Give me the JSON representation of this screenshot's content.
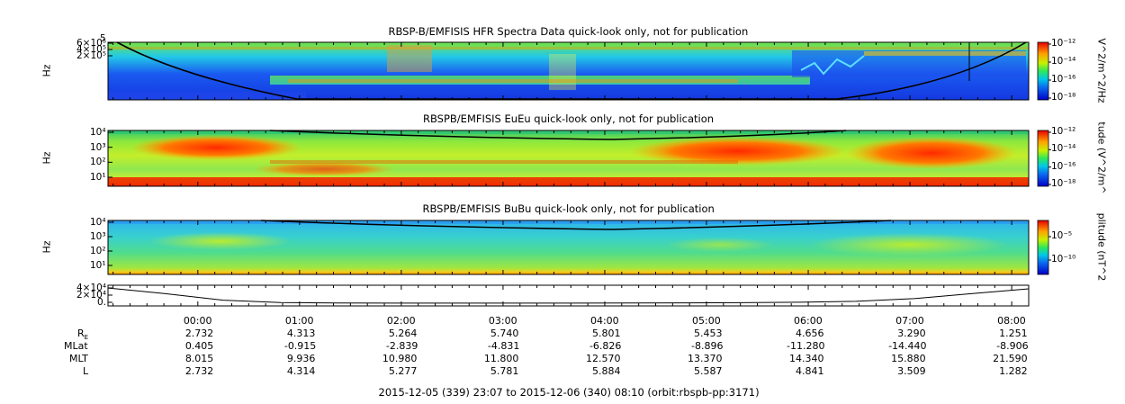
{
  "chart_data": {
    "type": "heatmap",
    "footer": "2015-12-05 (339) 23:07 to 2015-12-06 (340) 08:10 (orbit:rbspb-pp:3171)",
    "time_ticks": [
      "00:00",
      "01:00",
      "02:00",
      "03:00",
      "04:00",
      "05:00",
      "06:00",
      "07:00",
      "08:00"
    ],
    "time_start_hours": -0.883,
    "time_end_hours": 8.167,
    "panels": [
      {
        "title": "RBSP-B/EMFISIS  HFR Spectra Data quick-look only, not for publication",
        "ylabel": "Hz",
        "yticks": [
          "6×10⁵",
          "4×10⁵",
          "2×10⁵"
        ],
        "ytick_top": "5",
        "colorbar_label": "V^2/m^2/Hz",
        "colorbar_ticks": [
          "10⁻¹²",
          "10⁻¹⁴",
          "10⁻¹⁶",
          "10⁻¹⁸"
        ]
      },
      {
        "title": "RBSPB/EMFISIS  EuEu quick-look only, not for publication",
        "ylabel": "Hz",
        "yticks": [
          "10⁴",
          "10³",
          "10²",
          "10¹"
        ],
        "colorbar_label": "tude (V^2/m^",
        "colorbar_ticks": [
          "10⁻¹²",
          "10⁻¹⁴",
          "10⁻¹⁶",
          "10⁻¹⁸"
        ]
      },
      {
        "title": "RBSPB/EMFISIS  BuBu quick-look only, not for publication",
        "ylabel": "Hz",
        "yticks": [
          "10⁴",
          "10³",
          "10²",
          "10¹"
        ],
        "colorbar_label": "plitude (nT^2",
        "colorbar_ticks": [
          "10⁻⁵",
          "10⁻¹⁰"
        ]
      },
      {
        "title": "",
        "ylabel": "",
        "yticks": [
          "4×10⁴",
          "2×10⁴",
          "0."
        ],
        "line_values": [
          40000,
          25000,
          8000,
          2000,
          400,
          200,
          200,
          200,
          300,
          600,
          1000,
          1500,
          2500,
          5000,
          12000,
          25000,
          38000
        ]
      }
    ],
    "ephemeris": {
      "rows": [
        {
          "label": "R",
          "sub": "E",
          "values": [
            "2.732",
            "4.313",
            "5.264",
            "5.740",
            "5.801",
            "5.453",
            "4.656",
            "3.290",
            "1.251"
          ]
        },
        {
          "label": "MLat",
          "sub": "",
          "values": [
            "0.405",
            "-0.915",
            "-2.839",
            "-4.831",
            "-6.826",
            "-8.896",
            "-11.280",
            "-14.440",
            "-8.906"
          ]
        },
        {
          "label": "MLT",
          "sub": "",
          "values": [
            "8.015",
            "9.936",
            "10.980",
            "11.800",
            "12.570",
            "13.370",
            "14.340",
            "15.880",
            "21.590"
          ]
        },
        {
          "label": "L",
          "sub": "",
          "values": [
            "2.732",
            "4.314",
            "5.277",
            "5.781",
            "5.884",
            "5.587",
            "4.841",
            "3.509",
            "1.282"
          ]
        }
      ]
    }
  }
}
